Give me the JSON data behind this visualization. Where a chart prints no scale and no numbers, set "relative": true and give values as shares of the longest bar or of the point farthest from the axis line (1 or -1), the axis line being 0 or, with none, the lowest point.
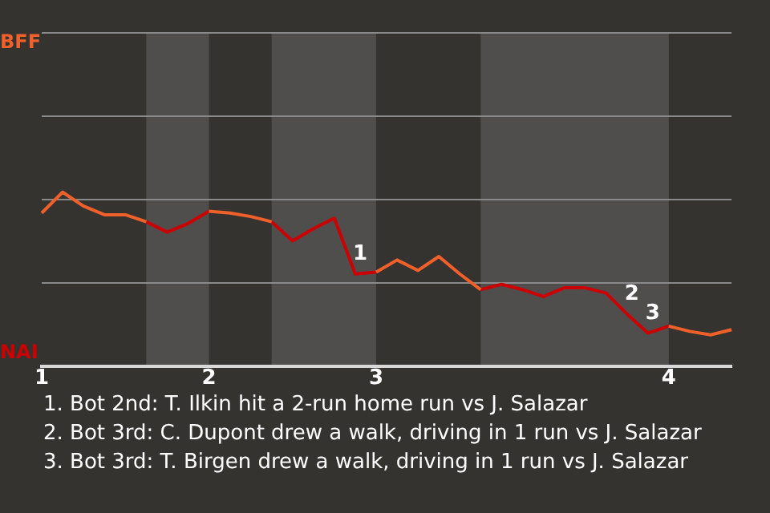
{
  "chart_data": {
    "type": "line",
    "categories": [
      "1",
      null,
      null,
      null,
      null,
      null,
      null,
      null,
      "2",
      null,
      null,
      null,
      null,
      null,
      null,
      null,
      "3",
      null,
      null,
      null,
      null,
      null,
      null,
      null,
      null,
      null,
      null,
      null,
      null,
      null,
      "4",
      null,
      null,
      null
    ],
    "relative": true,
    "series": [
      {
        "color": "#f0602a",
        "values": [
          0.88,
          1.0,
          0.92,
          0.87,
          0.87,
          0.83,
          null,
          null,
          0.89,
          0.88,
          0.86,
          0.83,
          null,
          null,
          null,
          null,
          0.54,
          0.61,
          0.55,
          0.63,
          0.53,
          0.44,
          null,
          null,
          null,
          null,
          null,
          null,
          null,
          null,
          0.23,
          0.2,
          0.18,
          0.21
        ]
      },
      {
        "color": "#cc0000",
        "values": [
          null,
          null,
          null,
          null,
          null,
          0.83,
          0.77,
          0.82,
          0.89,
          null,
          null,
          0.83,
          0.72,
          0.79,
          0.85,
          0.53,
          0.54,
          null,
          null,
          null,
          null,
          0.44,
          0.47,
          0.44,
          0.4,
          0.45,
          0.45,
          0.42,
          0.3,
          0.19,
          0.23,
          null,
          null,
          null
        ]
      }
    ],
    "ref_lines": [
      {
        "axis": "y",
        "value": 0.48,
        "color": "#8a8a8a"
      },
      {
        "axis": "y",
        "value": 0.96,
        "color": "#8a8a8a"
      },
      {
        "axis": "y",
        "value": 1.44,
        "color": "#8a8a8a"
      },
      {
        "axis": "y",
        "value": 1.92,
        "color": "#8a8a8a"
      }
    ],
    "annotations": [
      "BFF",
      "NAI",
      {
        "text": "1",
        "y": 0.53
      },
      {
        "text": "2",
        "y": 0.3
      },
      {
        "text": "3",
        "y": 0.19
      },
      "1. Bot 2nd: T. Ilkin hit a 2-run home run vs J. Salazar",
      "2. Bot 3rd: C. Dupont drew a walk, driving in 1 run vs J. Salazar",
      "3. Bot 3rd: T. Birgen drew a walk, driving in 1 run vs J. Salazar"
    ]
  }
}
